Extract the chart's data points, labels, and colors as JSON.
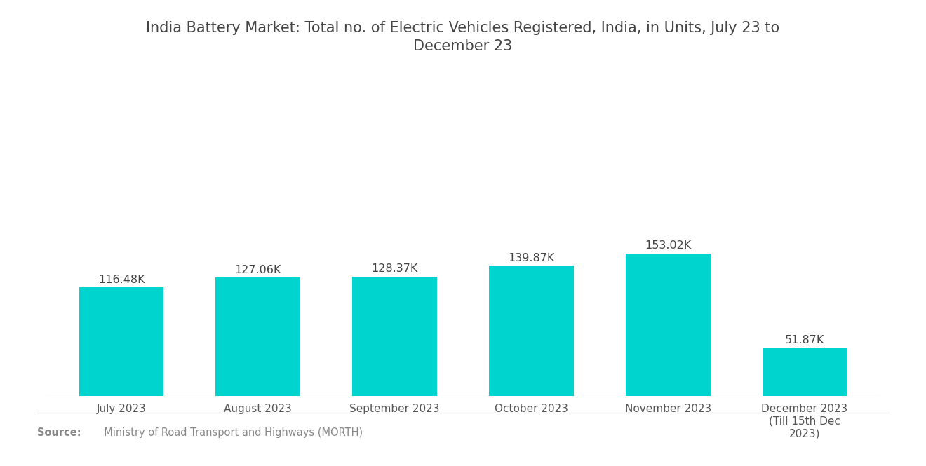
{
  "title": "India Battery Market: Total no. of Electric Vehicles Registered, India, in Units, July 23 to\nDecember 23",
  "categories": [
    "July 2023",
    "August 2023",
    "September 2023",
    "October 2023",
    "November 2023",
    "December 2023\n(Till 15th Dec\n2023)"
  ],
  "values": [
    116.48,
    127.06,
    128.37,
    139.87,
    153.02,
    51.87
  ],
  "labels": [
    "116.48K",
    "127.06K",
    "128.37K",
    "139.87K",
    "153.02K",
    "51.87K"
  ],
  "bar_color": "#00D4CF",
  "background_color": "#FFFFFF",
  "title_color": "#444444",
  "label_color": "#444444",
  "tick_color": "#555555",
  "source_bold": "Source:",
  "source_text": "  Ministry of Road Transport and Highways (MORTH)",
  "source_color": "#888888",
  "title_fontsize": 15,
  "label_fontsize": 11.5,
  "tick_fontsize": 11,
  "source_fontsize": 10.5,
  "ylim": [
    0,
    260
  ],
  "bar_width": 0.62
}
